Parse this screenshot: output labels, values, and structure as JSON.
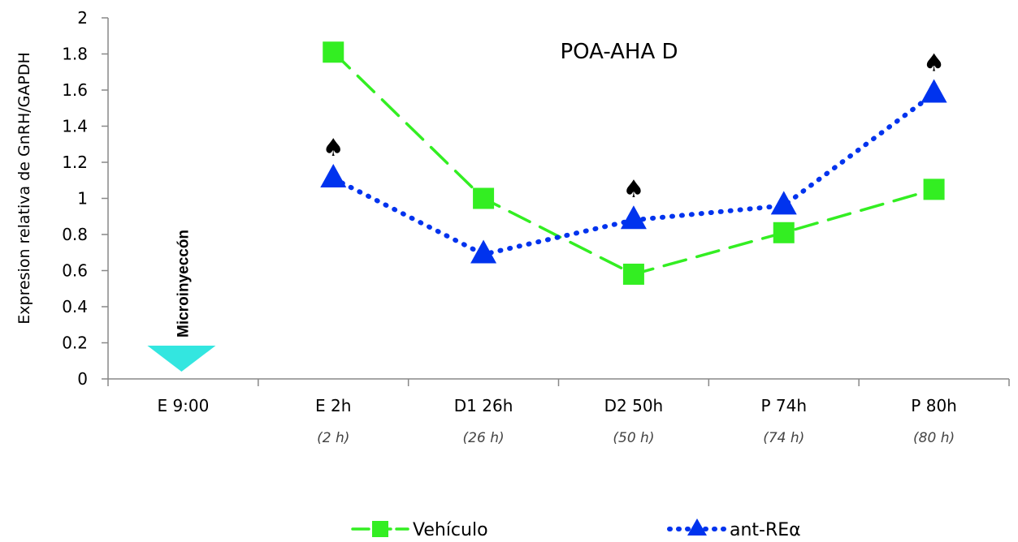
{
  "chart_data": {
    "type": "line",
    "title": "POA-AHA D",
    "ylabel": "Expresion relativa de GnRH/GAPDH",
    "xlabel": "",
    "ylim": [
      0,
      2
    ],
    "yticks": [
      "0",
      "0.2",
      "0.4",
      "0.6",
      "0.8",
      "1",
      "1.2",
      "1.4",
      "1.6",
      "1.8",
      "2"
    ],
    "categories": [
      "E 9:00",
      "E 2h",
      "D1 26h",
      "D2 50h",
      "P 74h",
      "P 80h"
    ],
    "subcategories": [
      "",
      "(2 h)",
      "(26 h)",
      "(50 h)",
      "(74 h)",
      "(80 h)"
    ],
    "series": [
      {
        "name": "Vehículo",
        "values": [
          null,
          1.81,
          1.0,
          0.58,
          0.81,
          1.05
        ],
        "color": "#33ee22",
        "marker": "square",
        "line": "dashed"
      },
      {
        "name": "ant-REα",
        "values": [
          null,
          1.11,
          0.69,
          0.88,
          0.96,
          1.58
        ],
        "color": "#0033ee",
        "marker": "triangle",
        "line": "dotted"
      }
    ],
    "significance_symbol": "♠",
    "significant_categories": [
      "E 2h",
      "D2 50h",
      "P 80h"
    ],
    "annotation": {
      "text": "Microinyeccón",
      "category": "E 9:00",
      "marker_color": "#33e6e0"
    },
    "legend_position": "bottom",
    "grid": false
  }
}
